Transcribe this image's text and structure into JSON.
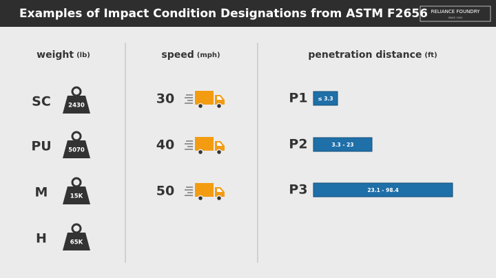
{
  "header": {
    "title": "Examples of Impact Condition Designations from ASTM F2656",
    "logo": {
      "name": "RELIANCE FOUNDRY",
      "tagline": "SINCE 1925"
    }
  },
  "columns": [
    {
      "heading": "weight",
      "unit": "(lb)",
      "rows": [
        {
          "label": "SC",
          "value": "2430"
        },
        {
          "label": "PU",
          "value": "5070"
        },
        {
          "label": "M",
          "value": "15K"
        },
        {
          "label": "H",
          "value": "65K"
        }
      ]
    },
    {
      "heading": "speed",
      "unit": "(mph)",
      "rows": [
        {
          "label": "30"
        },
        {
          "label": "40"
        },
        {
          "label": "50"
        }
      ]
    },
    {
      "heading": "penetration distance",
      "unit": "(ft)",
      "rows": [
        {
          "label": "P1",
          "value": "≤ 3.3"
        },
        {
          "label": "P2",
          "value": "3.3 - 23"
        },
        {
          "label": "P3",
          "value": "23.1 - 98.4"
        }
      ]
    }
  ]
}
